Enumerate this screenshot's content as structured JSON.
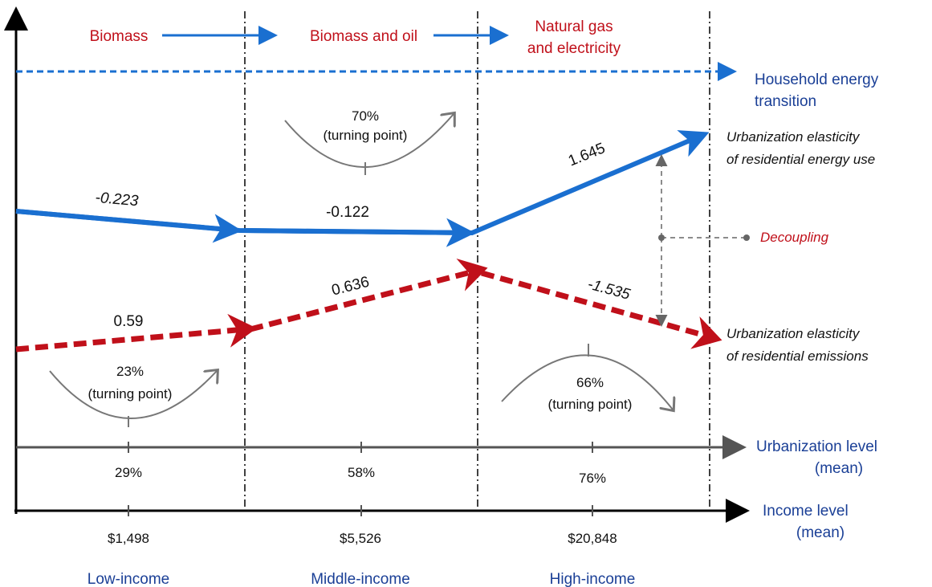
{
  "energy_stages": [
    {
      "lines": [
        "Biomass"
      ]
    },
    {
      "lines": [
        "Biomass and oil"
      ]
    },
    {
      "lines": [
        "Natural gas",
        "and electricity"
      ]
    }
  ],
  "transition_label": [
    "Household energy",
    "transition"
  ],
  "energy_use": {
    "label": [
      "Urbanization elasticity",
      "of residential energy use"
    ],
    "values": [
      "-0.223",
      "-0.122",
      "1.645"
    ]
  },
  "emissions": {
    "label": [
      "Urbanization elasticity",
      "of residential emissions"
    ],
    "values": [
      "0.59",
      "0.636",
      "-1.535"
    ]
  },
  "decoupling": "Decoupling",
  "turning_points": [
    {
      "value": "70%",
      "note": "(turning point)"
    },
    {
      "value": "23%",
      "note": "(turning point)"
    },
    {
      "value": "66%",
      "note": "(turning point)"
    }
  ],
  "urbanization_axis": {
    "label": [
      "Urbanization level",
      "(mean)"
    ],
    "ticks": [
      "29%",
      "58%",
      "76%"
    ]
  },
  "income_axis": {
    "label": [
      "Income level",
      "(mean)"
    ],
    "ticks": [
      "$1,498",
      "$5,526",
      "$20,848"
    ]
  },
  "groups": [
    "Low-income",
    "Middle-income",
    "High-income"
  ]
}
